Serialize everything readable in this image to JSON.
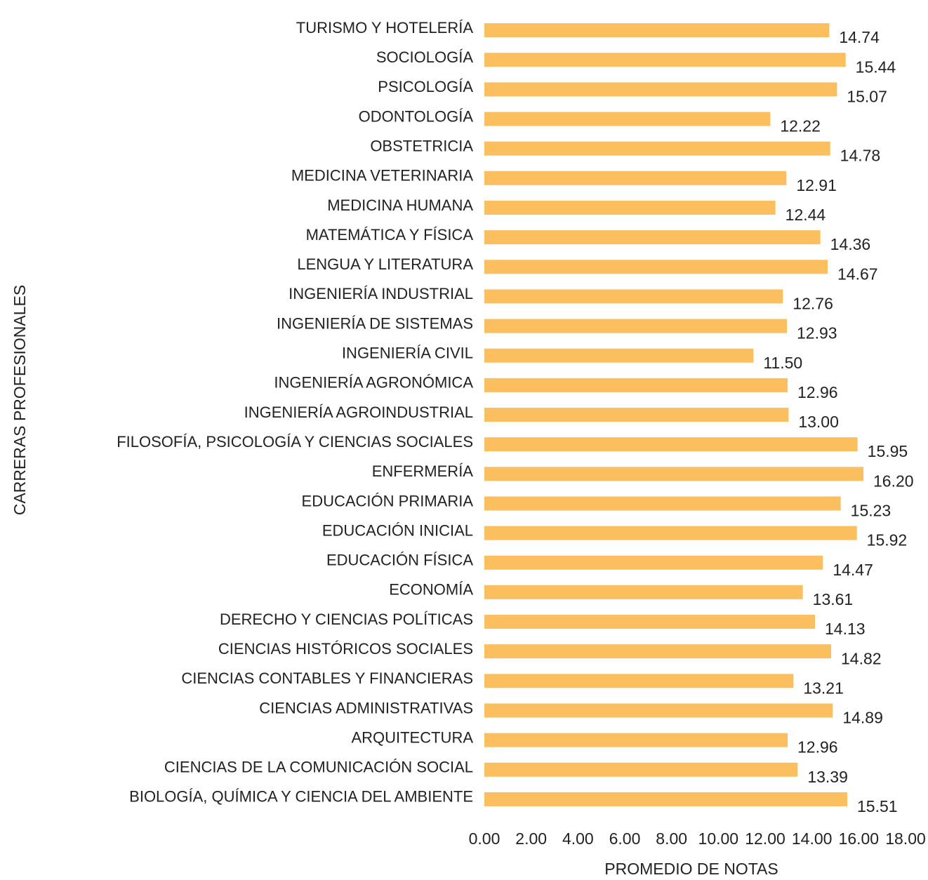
{
  "chart_data": {
    "type": "barh",
    "xlabel": "PROMEDIO DE NOTAS",
    "ylabel": "CARRERAS PROFESIONALES",
    "categories": [
      "TURISMO Y HOTELERÍA",
      "SOCIOLOGÍA",
      "PSICOLOGÍA",
      "ODONTOLOGÍA",
      "OBSTETRICIA",
      "MEDICINA VETERINARIA",
      "MEDICINA HUMANA",
      "MATEMÁTICA Y FÍSICA",
      "LENGUA Y LITERATURA",
      "INGENIERÍA INDUSTRIAL",
      "INGENIERÍA DE SISTEMAS",
      "INGENIERÍA CIVIL",
      "INGENIERÍA AGRONÓMICA",
      "INGENIERÍA AGROINDUSTRIAL",
      "FILOSOFÍA, PSICOLOGÍA Y CIENCIAS SOCIALES",
      "ENFERMERÍA",
      "EDUCACIÓN PRIMARIA",
      "EDUCACIÓN INICIAL",
      "EDUCACIÓN FÍSICA",
      "ECONOMÍA",
      "DERECHO Y CIENCIAS POLÍTICAS",
      "CIENCIAS HISTÓRICOS SOCIALES",
      "CIENCIAS CONTABLES Y FINANCIERAS",
      "CIENCIAS ADMINISTRATIVAS",
      "ARQUITECTURA",
      "CIENCIAS DE LA COMUNICACIÓN SOCIAL",
      "BIOLOGÍA, QUÍMICA Y CIENCIA DEL AMBIENTE"
    ],
    "values": [
      14.74,
      15.44,
      15.07,
      12.22,
      14.78,
      12.91,
      12.44,
      14.36,
      14.67,
      12.76,
      12.93,
      11.5,
      12.96,
      13,
      15.95,
      16.2,
      15.23,
      15.92,
      14.47,
      13.61,
      14.13,
      14.82,
      13.21,
      14.89,
      12.96,
      13.39,
      15.51
    ],
    "value_labels": [
      "14.74",
      "15.44",
      "15.07",
      "12.22",
      "14.78",
      "12.91",
      "12.44",
      "14.36",
      "14.67",
      "12.76",
      "12.93",
      "11.50",
      "12.96",
      "13.00",
      "15.95",
      "16.20",
      "15.23",
      "15.92",
      "14.47",
      "13.61",
      "14.13",
      "14.82",
      "13.21",
      "14.89",
      "12.96",
      "13.39",
      "15.51"
    ],
    "color": "#fbbf5f",
    "xlim": [
      0,
      18
    ],
    "xticks": [
      {
        "value": 0,
        "label": "0.00"
      },
      {
        "value": 2,
        "label": "2.00"
      },
      {
        "value": 4,
        "label": "4.00"
      },
      {
        "value": 6,
        "label": "6.00"
      },
      {
        "value": 8,
        "label": "8.00"
      },
      {
        "value": 10,
        "label": "10.00"
      },
      {
        "value": 12,
        "label": "12.00"
      },
      {
        "value": 14,
        "label": "14.00"
      },
      {
        "value": 16,
        "label": "16.00"
      },
      {
        "value": 18,
        "label": "18.00"
      }
    ]
  }
}
